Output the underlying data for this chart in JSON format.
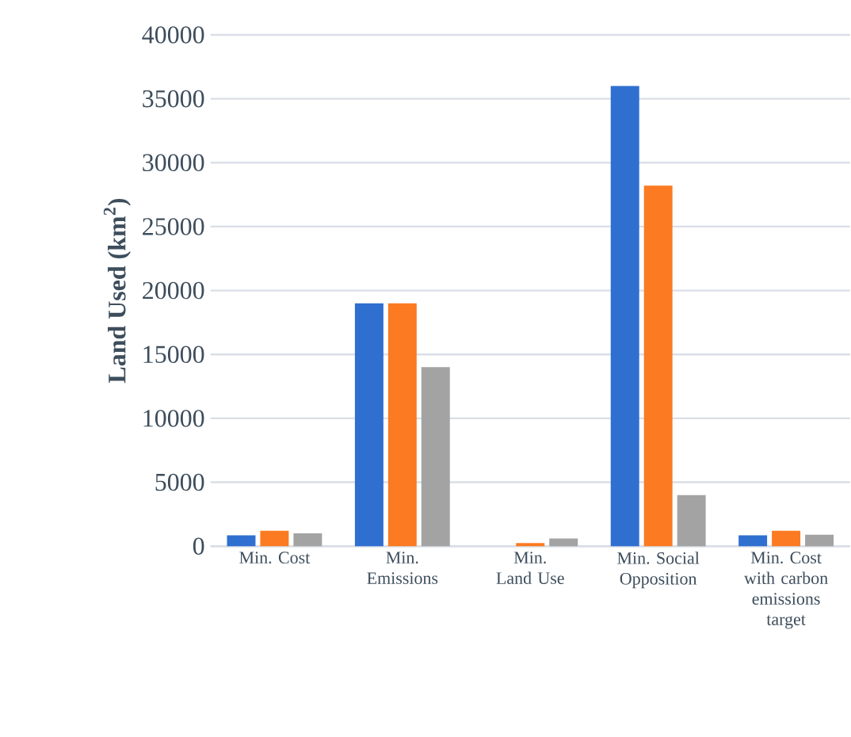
{
  "chart_data": {
    "type": "bar",
    "ylabel": "Land Used (km$^{2}$)",
    "categories": [
      "Min. Cost",
      "Min. Emissions",
      "Min. Land Use",
      "Min. Social Opposition",
      "Min. Cost with carbon emissions target"
    ],
    "series": [
      {
        "color": "#2f6fd0",
        "values": [
          850,
          19000,
          0,
          36000,
          850
        ]
      },
      {
        "color": "#fb7a22",
        "values": [
          1200,
          19000,
          250,
          28200,
          1200
        ]
      },
      {
        "color": "#a3a3a3",
        "values": [
          1000,
          14000,
          600,
          4000,
          900
        ]
      }
    ],
    "ylim": [
      0,
      40000
    ],
    "yticks": [
      0,
      5000,
      10000,
      15000,
      20000,
      25000,
      30000,
      35000,
      40000
    ],
    "grid": "y"
  }
}
